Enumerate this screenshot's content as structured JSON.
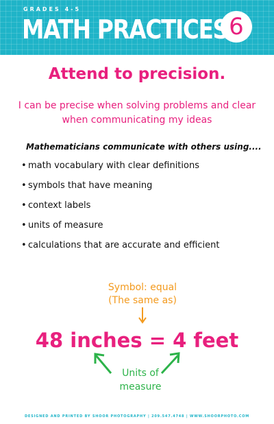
{
  "header": {
    "grades": "GRADES 4-5",
    "title": "MATH PRACTICES",
    "number": "6"
  },
  "heading": "Attend to precision.",
  "subheading": "I can be precise when solving problems and clear when communicating my ideas",
  "intro": "Mathematicians communicate with others using....",
  "bullets": [
    "math vocabulary with clear definitions",
    "symbols that have meaning",
    "context labels",
    "units of measure",
    "calculations that are accurate and efficient"
  ],
  "example": {
    "symbol_label": "Symbol: equal",
    "symbol_meaning": "(The same as)",
    "equation": "48 inches = 4 feet",
    "units_label_line1": "Units of",
    "units_label_line2": "measure"
  },
  "footer": "DESIGNED AND PRINTED BY SHOOR PHOTOGRAPHY | 209.547.4748 | WWW.SHOORPHOTO.COM",
  "colors": {
    "header_teal": "#1fb4c8",
    "accent_pink": "#e8207e",
    "note_orange": "#f39a1e",
    "note_green": "#2db34a"
  }
}
